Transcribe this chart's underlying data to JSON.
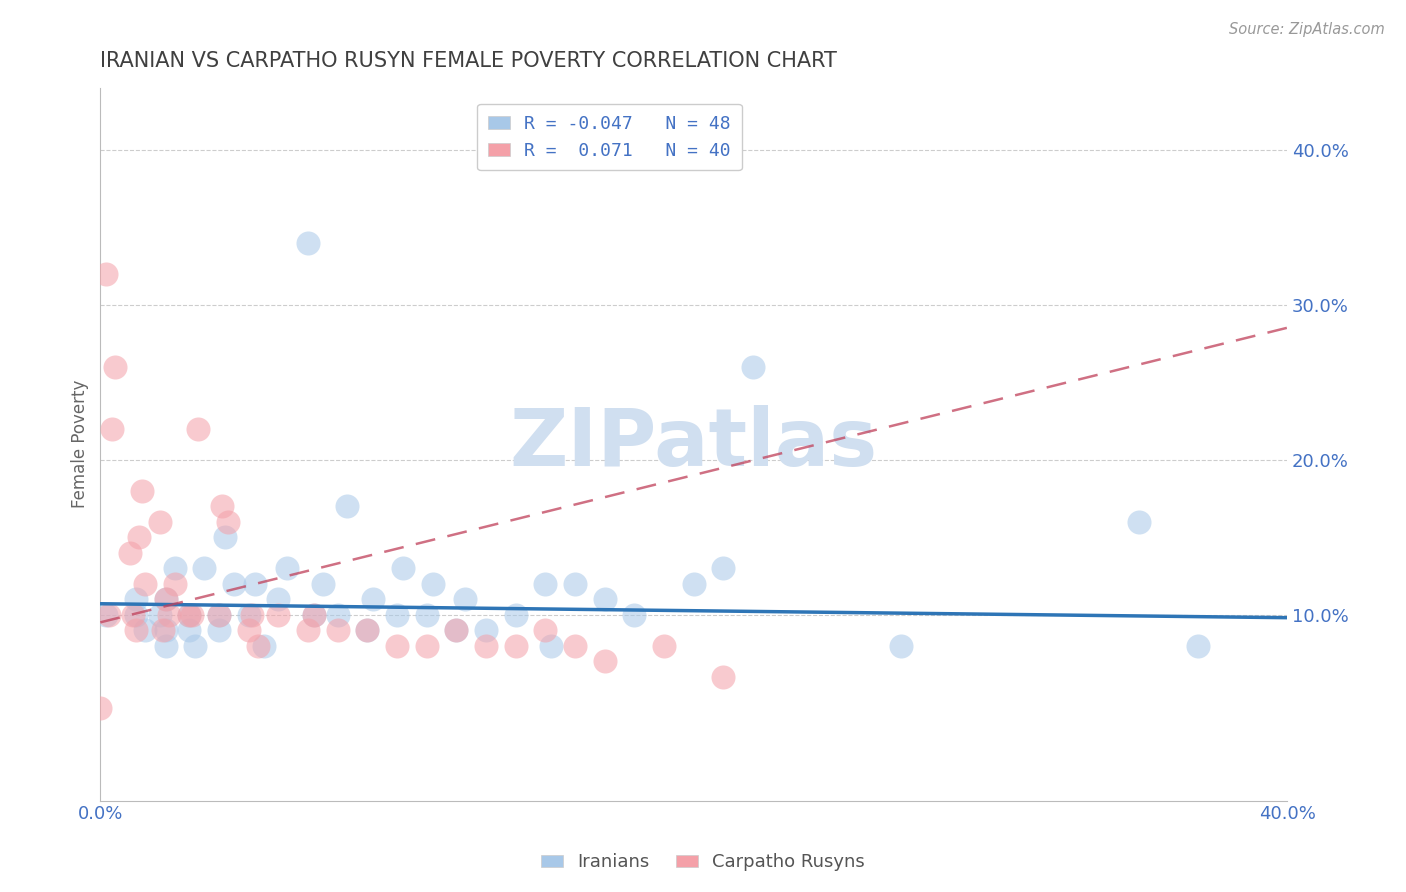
{
  "title": "IRANIAN VS CARPATHO RUSYN FEMALE POVERTY CORRELATION CHART",
  "source": "Source: ZipAtlas.com",
  "ylabel": "Female Poverty",
  "xlim": [
    0.0,
    0.4
  ],
  "ylim": [
    -0.02,
    0.44
  ],
  "iranians_R": -0.047,
  "iranians_N": 48,
  "carpatho_R": 0.071,
  "carpatho_N": 40,
  "iranian_color": "#a8c8e8",
  "carpatho_color": "#f4a0a8",
  "iranian_line_color": "#2e75b6",
  "carpatho_line_color": "#c0405a",
  "watermark": "ZIPatlas",
  "watermark_color": "#d0dff0",
  "background_color": "#ffffff",
  "title_color": "#404040",
  "axis_color": "#4472c4",
  "grid_color": "#c8c8c8",
  "iranians_x": [
    0.002,
    0.012,
    0.012,
    0.015,
    0.02,
    0.022,
    0.022,
    0.022,
    0.025,
    0.03,
    0.03,
    0.032,
    0.035,
    0.04,
    0.04,
    0.042,
    0.045,
    0.05,
    0.052,
    0.055,
    0.06,
    0.063,
    0.07,
    0.072,
    0.075,
    0.08,
    0.083,
    0.09,
    0.092,
    0.1,
    0.102,
    0.11,
    0.112,
    0.12,
    0.123,
    0.13,
    0.14,
    0.15,
    0.152,
    0.16,
    0.17,
    0.18,
    0.2,
    0.21,
    0.22,
    0.27,
    0.35,
    0.37
  ],
  "iranians_y": [
    0.1,
    0.1,
    0.11,
    0.09,
    0.1,
    0.11,
    0.09,
    0.08,
    0.13,
    0.1,
    0.09,
    0.08,
    0.13,
    0.1,
    0.09,
    0.15,
    0.12,
    0.1,
    0.12,
    0.08,
    0.11,
    0.13,
    0.34,
    0.1,
    0.12,
    0.1,
    0.17,
    0.09,
    0.11,
    0.1,
    0.13,
    0.1,
    0.12,
    0.09,
    0.11,
    0.09,
    0.1,
    0.12,
    0.08,
    0.12,
    0.11,
    0.1,
    0.12,
    0.13,
    0.26,
    0.08,
    0.16,
    0.08
  ],
  "carpatho_x": [
    0.0,
    0.002,
    0.003,
    0.004,
    0.005,
    0.01,
    0.011,
    0.012,
    0.013,
    0.014,
    0.015,
    0.02,
    0.021,
    0.022,
    0.023,
    0.025,
    0.03,
    0.031,
    0.033,
    0.04,
    0.041,
    0.043,
    0.05,
    0.051,
    0.053,
    0.06,
    0.07,
    0.072,
    0.08,
    0.09,
    0.1,
    0.11,
    0.12,
    0.13,
    0.14,
    0.15,
    0.16,
    0.17,
    0.19,
    0.21
  ],
  "carpatho_y": [
    0.04,
    0.32,
    0.1,
    0.22,
    0.26,
    0.14,
    0.1,
    0.09,
    0.15,
    0.18,
    0.12,
    0.16,
    0.09,
    0.11,
    0.1,
    0.12,
    0.1,
    0.1,
    0.22,
    0.1,
    0.17,
    0.16,
    0.09,
    0.1,
    0.08,
    0.1,
    0.09,
    0.1,
    0.09,
    0.09,
    0.08,
    0.08,
    0.09,
    0.08,
    0.08,
    0.09,
    0.08,
    0.07,
    0.08,
    0.06
  ],
  "iranian_trend_x": [
    0.0,
    0.4
  ],
  "iranian_trend_y": [
    0.107,
    0.098
  ],
  "carpatho_trend_x": [
    0.0,
    0.4
  ],
  "carpatho_trend_y": [
    0.095,
    0.285
  ]
}
